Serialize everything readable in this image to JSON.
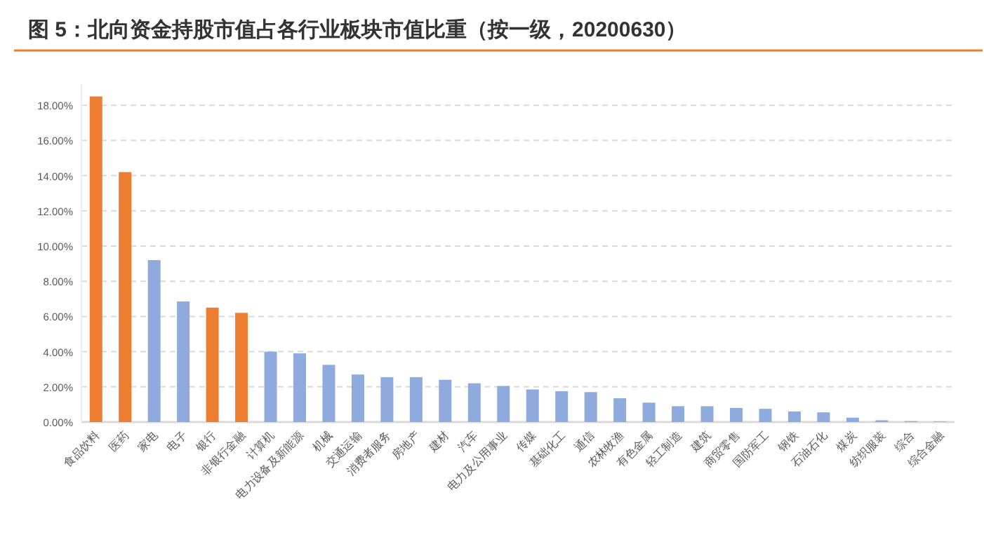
{
  "chart_data": {
    "type": "bar",
    "title": "图 5：北向资金持股市值占各行业板块市值比重（按一级，20200630）",
    "categories": [
      "食品饮料",
      "医药",
      "家电",
      "电子",
      "银行",
      "非银行金融",
      "计算机",
      "电力设备及新能源",
      "机械",
      "交通运输",
      "消费者服务",
      "房地产",
      "建材",
      "汽车",
      "电力及公用事业",
      "传媒",
      "基础化工",
      "通信",
      "农林牧渔",
      "有色金属",
      "轻工制造",
      "建筑",
      "商贸零售",
      "国防军工",
      "钢铁",
      "石油石化",
      "煤炭",
      "纺织服装",
      "综合",
      "综合金融"
    ],
    "values": [
      18.5,
      14.2,
      9.2,
      6.85,
      6.5,
      6.2,
      4.0,
      3.9,
      3.25,
      2.7,
      2.55,
      2.55,
      2.4,
      2.2,
      2.05,
      1.85,
      1.75,
      1.7,
      1.35,
      1.1,
      0.9,
      0.9,
      0.8,
      0.75,
      0.6,
      0.55,
      0.25,
      0.1,
      0.05,
      0.03
    ],
    "colors": [
      "#ed7d31",
      "#ed7d31",
      "#8faadc",
      "#8faadc",
      "#ed7d31",
      "#ed7d31",
      "#8faadc",
      "#8faadc",
      "#8faadc",
      "#8faadc",
      "#8faadc",
      "#8faadc",
      "#8faadc",
      "#8faadc",
      "#8faadc",
      "#8faadc",
      "#8faadc",
      "#8faadc",
      "#8faadc",
      "#8faadc",
      "#8faadc",
      "#8faadc",
      "#8faadc",
      "#8faadc",
      "#8faadc",
      "#8faadc",
      "#8faadc",
      "#8faadc",
      "#8faadc",
      "#8faadc"
    ],
    "ylim": [
      0,
      19.2
    ],
    "yticks": [
      {
        "value": 0,
        "label": "0.00%"
      },
      {
        "value": 2,
        "label": "2.00%"
      },
      {
        "value": 4,
        "label": "4.00%"
      },
      {
        "value": 6,
        "label": "6.00%"
      },
      {
        "value": 8,
        "label": "8.00%"
      },
      {
        "value": 10,
        "label": "10.00%"
      },
      {
        "value": 12,
        "label": "12.00%"
      },
      {
        "value": 14,
        "label": "14.00%"
      },
      {
        "value": 16,
        "label": "16.00%"
      },
      {
        "value": 18,
        "label": "18.00%"
      }
    ],
    "grid": "y"
  }
}
